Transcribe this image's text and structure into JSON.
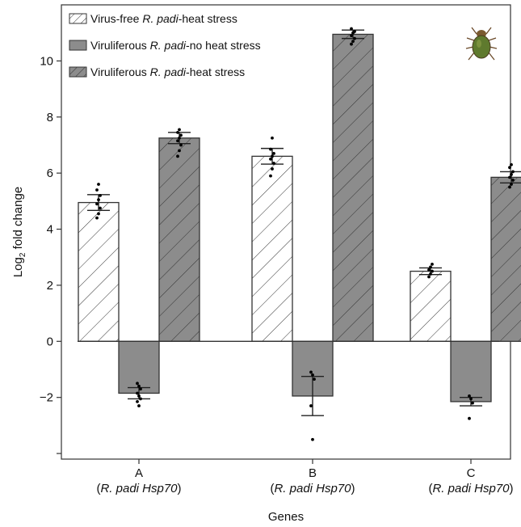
{
  "chart_data": {
    "type": "bar",
    "title": "",
    "xlabel": "Genes",
    "ylabel": "Log",
    "ylabel_sub": "2",
    "ylabel_rest": " fold change",
    "ylim": [
      -4.2,
      12.0
    ],
    "yticks": [
      -2,
      0,
      2,
      4,
      6,
      8,
      10
    ],
    "ytick_labels": [
      "−2",
      "0",
      "2",
      "4",
      "6",
      "8",
      "10"
    ],
    "grid": false,
    "legend_position": "top-left",
    "categories": [
      {
        "label": "A",
        "sub_prefix": "(",
        "sub_italic": "R. padi Hsp70",
        "sub_suffix": ")"
      },
      {
        "label": "B",
        "sub_prefix": "(",
        "sub_italic": "R. padi Hsp70",
        "sub_suffix": ")"
      },
      {
        "label": "C",
        "sub_prefix": "(",
        "sub_italic": "R. padi Hsp70",
        "sub_suffix": ")"
      }
    ],
    "series": [
      {
        "name_pre": "Virus-free ",
        "name_italic": "R. padi",
        "name_post": "-heat stress",
        "fill": "#ffffff",
        "hatch": true,
        "values": [
          4.95,
          6.6,
          2.5
        ],
        "errors": [
          0.28,
          0.28,
          0.12
        ],
        "points": [
          [
            4.4,
            4.55,
            4.75,
            4.9,
            5.05,
            5.2,
            5.4,
            5.6
          ],
          [
            5.9,
            6.15,
            6.35,
            6.5,
            6.6,
            6.7,
            6.85,
            7.25
          ],
          [
            2.3,
            2.4,
            2.5,
            2.55,
            2.65,
            2.75
          ]
        ]
      },
      {
        "name_pre": "Viruliferous ",
        "name_italic": "R. padi",
        "name_post": "-no heat stress",
        "fill": "#8c8c8c",
        "hatch": false,
        "values": [
          -1.85,
          -1.95,
          -2.15
        ],
        "errors": [
          0.2,
          0.7,
          0.15
        ],
        "points": [
          [
            -1.5,
            -1.6,
            -1.7,
            -1.85,
            -1.95,
            -2.05,
            -2.15,
            -2.3
          ],
          [
            -1.1,
            -1.2,
            -1.35,
            -2.3,
            -3.5
          ],
          [
            -1.95,
            -2.05,
            -2.2,
            -2.75
          ]
        ]
      },
      {
        "name_pre": "Viruliferous ",
        "name_italic": "R. padi",
        "name_post": "-heat stress",
        "fill": "#8c8c8c",
        "hatch": true,
        "values": [
          7.25,
          10.95,
          5.85
        ],
        "errors": [
          0.2,
          0.15,
          0.2
        ],
        "points": [
          [
            6.6,
            6.8,
            7.0,
            7.15,
            7.25,
            7.35,
            7.45,
            7.55
          ],
          [
            10.6,
            10.7,
            10.8,
            10.9,
            11.0,
            11.05,
            11.15
          ],
          [
            5.5,
            5.6,
            5.75,
            5.85,
            5.95,
            6.05,
            6.2,
            6.3
          ]
        ]
      }
    ],
    "colors": {
      "bar_edge": "#333333",
      "hatch_line": "#333333",
      "axis": "#333333",
      "point": "#000000"
    },
    "inset_icon": "aphid-icon"
  }
}
